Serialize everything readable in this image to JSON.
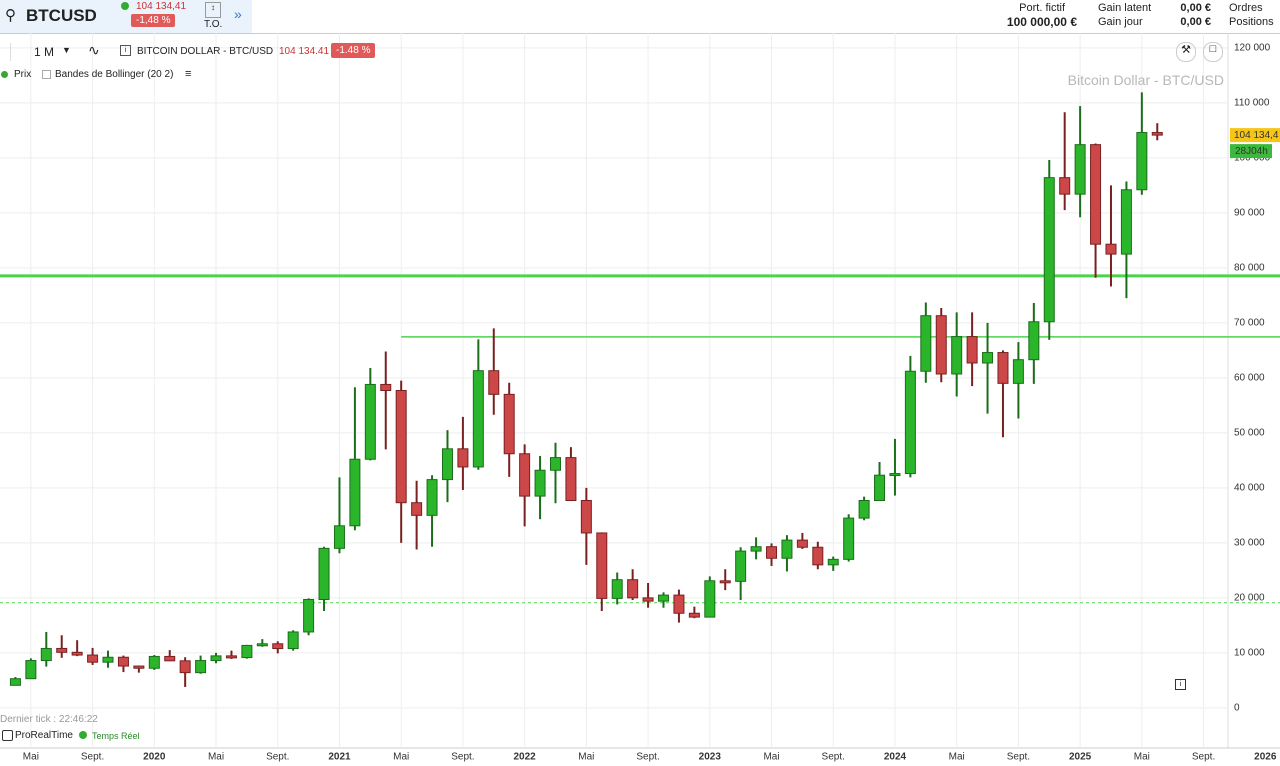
{
  "header": {
    "symbol": "BTCUSD",
    "price": "104 134,41",
    "change": "-1,48 %",
    "to": "T.O.",
    "port_label": "Port. fictif",
    "port_value": "100 000,00 €",
    "gain_latent_label": "Gain latent",
    "gain_latent": "0,00 €",
    "gain_jour_label": "Gain jour",
    "gain_jour": "0,00 €",
    "ordres": "Ordres",
    "positions": "Positions"
  },
  "toolbar": {
    "period": "1 M",
    "instrument": "BITCOIN DOLLAR - BTC/USD",
    "price": "104 134.41",
    "change": "-1.48 %",
    "legend_price": "Prix",
    "legend_bollinger": "Bandes de Bollinger (20 2)"
  },
  "footer": {
    "last_tick": "Dernier tick : 22:46:22",
    "source": "ProRealTime",
    "realtime": "Temps Réel"
  },
  "chart_data": {
    "type": "candlestick",
    "title": "Bitcoin Dollar - BTC/USD",
    "up_color": "#2bb52b",
    "down_color": "#cc4747",
    "x": [
      "2019-04",
      "2019-05",
      "2019-06",
      "2019-07",
      "2019-08",
      "2019-09",
      "2019-10",
      "2019-11",
      "2019-12",
      "2020-01",
      "2020-02",
      "2020-03",
      "2020-04",
      "2020-05",
      "2020-06",
      "2020-07",
      "2020-08",
      "2020-09",
      "2020-10",
      "2020-11",
      "2020-12",
      "2021-01",
      "2021-02",
      "2021-03",
      "2021-04",
      "2021-05",
      "2021-06",
      "2021-07",
      "2021-08",
      "2021-09",
      "2021-10",
      "2021-11",
      "2021-12",
      "2022-01",
      "2022-02",
      "2022-03",
      "2022-04",
      "2022-05",
      "2022-06",
      "2022-07",
      "2022-08",
      "2022-09",
      "2022-10",
      "2022-11",
      "2022-12",
      "2023-01",
      "2023-02",
      "2023-03",
      "2023-04",
      "2023-05",
      "2023-06",
      "2023-07",
      "2023-08",
      "2023-09",
      "2023-10",
      "2023-11",
      "2023-12",
      "2024-01",
      "2024-02",
      "2024-03",
      "2024-04",
      "2024-05",
      "2024-06",
      "2024-07",
      "2024-08",
      "2024-09",
      "2024-10",
      "2024-11",
      "2024-12",
      "2025-01",
      "2025-02",
      "2025-03",
      "2025-04",
      "2025-05",
      "2025-06"
    ],
    "open": [
      4100,
      5300,
      8600,
      10800,
      10100,
      9600,
      8300,
      9200,
      7600,
      7200,
      9350,
      8550,
      6400,
      8600,
      9450,
      9140,
      11350,
      11650,
      10780,
      13800,
      19700,
      29000,
      33100,
      45200,
      58800,
      57700,
      37300,
      35000,
      41500,
      47100,
      43800,
      61300,
      57000,
      46200,
      38500,
      43200,
      45500,
      37700,
      31800,
      19900,
      23300,
      20000,
      19400,
      20500,
      17200,
      16500,
      23100,
      23000,
      28500,
      29300,
      27200,
      30500,
      29200,
      26000,
      27000,
      34500,
      37700,
      42300,
      42600,
      61200,
      71300,
      60700,
      67500,
      62700,
      64600,
      59000,
      63300,
      70200,
      96400,
      93400,
      102400,
      84300,
      82500,
      94200,
      104600
    ],
    "high": [
      5600,
      9000,
      13800,
      13200,
      12300,
      10900,
      10400,
      9500,
      7700,
      9600,
      10500,
      9200,
      9500,
      10000,
      10400,
      11450,
      12500,
      12100,
      14100,
      19900,
      29300,
      41900,
      58300,
      61800,
      64800,
      59500,
      41300,
      42300,
      50500,
      52900,
      67000,
      69000,
      59100,
      47900,
      45800,
      48200,
      47400,
      40000,
      31900,
      24600,
      25200,
      22700,
      21000,
      21500,
      18400,
      23900,
      25200,
      29200,
      31000,
      29900,
      31400,
      31800,
      30200,
      27500,
      35200,
      38400,
      44700,
      48900,
      64000,
      73700,
      72700,
      71900,
      71900,
      70000,
      65000,
      66500,
      73600,
      99600,
      108300,
      109400,
      102600,
      95000,
      95700,
      111900,
      106300
    ],
    "low": [
      4100,
      5300,
      7500,
      9100,
      9400,
      7800,
      7300,
      6500,
      6400,
      6900,
      8500,
      3800,
      6200,
      8100,
      8900,
      8950,
      11100,
      9900,
      10400,
      13200,
      17600,
      28100,
      32300,
      45000,
      47000,
      30000,
      28800,
      29300,
      37400,
      39600,
      43300,
      53300,
      42000,
      33000,
      34300,
      37200,
      37600,
      26000,
      17600,
      18800,
      19600,
      18200,
      18200,
      15500,
      16300,
      16500,
      21400,
      19600,
      27000,
      25800,
      24800,
      28900,
      25200,
      24900,
      26600,
      34100,
      37600,
      38600,
      41900,
      59100,
      59200,
      56600,
      58500,
      53500,
      49200,
      52600,
      58900,
      66900,
      90500,
      89200,
      78200,
      76600,
      74500,
      93300,
      103200
    ],
    "close": [
      5300,
      8600,
      10800,
      10100,
      9600,
      8300,
      9200,
      7600,
      7200,
      9350,
      8550,
      6400,
      8600,
      9450,
      9140,
      11350,
      11650,
      10780,
      13800,
      19700,
      29000,
      33100,
      45200,
      58800,
      57700,
      37300,
      35000,
      41500,
      47100,
      43800,
      61300,
      57000,
      46200,
      38500,
      43200,
      45500,
      37700,
      31800,
      19900,
      23300,
      20000,
      19400,
      20500,
      17200,
      16500,
      23100,
      23000,
      28500,
      29300,
      27200,
      30500,
      29200,
      26000,
      27000,
      34500,
      37700,
      42300,
      42600,
      61200,
      71300,
      60700,
      67500,
      62700,
      64600,
      59000,
      63300,
      70200,
      96400,
      93400,
      102400,
      84300,
      82500,
      94200,
      104600,
      104134.41
    ],
    "last_price_label": "104 134,4",
    "countdown": "28J04h",
    "hlines": [
      {
        "value": 78550,
        "from": "2019-03",
        "color": "#4cd34c"
      },
      {
        "value": 67450,
        "from": "2021-05",
        "color": "#4cd34c"
      },
      {
        "value": 19100,
        "from": "2019-03",
        "color": "#4cd34c",
        "dashed": true
      }
    ],
    "xlim": [
      "2019-03",
      "2025-10"
    ],
    "xticks": [
      {
        "value": "2019-05",
        "label": "Mai"
      },
      {
        "value": "2019-09",
        "label": "Sept."
      },
      {
        "value": "2020-01",
        "label": "2020"
      },
      {
        "value": "2020-05",
        "label": "Mai"
      },
      {
        "value": "2020-09",
        "label": "Sept."
      },
      {
        "value": "2021-01",
        "label": "2021"
      },
      {
        "value": "2021-05",
        "label": "Mai"
      },
      {
        "value": "2021-09",
        "label": "Sept."
      },
      {
        "value": "2022-01",
        "label": "2022"
      },
      {
        "value": "2022-05",
        "label": "Mai"
      },
      {
        "value": "2022-09",
        "label": "Sept."
      },
      {
        "value": "2023-01",
        "label": "2023"
      },
      {
        "value": "2023-05",
        "label": "Mai"
      },
      {
        "value": "2023-09",
        "label": "Sept."
      },
      {
        "value": "2024-01",
        "label": "2024"
      },
      {
        "value": "2024-05",
        "label": "Mai"
      },
      {
        "value": "2024-09",
        "label": "Sept."
      },
      {
        "value": "2025-01",
        "label": "2025"
      },
      {
        "value": "2025-05",
        "label": "Mai"
      },
      {
        "value": "2025-09",
        "label": "Sept."
      },
      {
        "value": "2026-01",
        "label": "2026"
      }
    ],
    "ylim": [
      -7300,
      122700
    ],
    "yticks": [
      0,
      {
        "value": 10000,
        "label": "10 000"
      },
      {
        "value": 20000,
        "label": "20 000"
      },
      {
        "value": 30000,
        "label": "30 000"
      },
      {
        "value": 40000,
        "label": "40 000"
      },
      {
        "value": 50000,
        "label": "50 000"
      },
      {
        "value": 60000,
        "label": "60 000"
      },
      {
        "value": 70000,
        "label": "70 000"
      },
      {
        "value": 80000,
        "label": "80 000"
      },
      {
        "value": 90000,
        "label": "90 000"
      },
      {
        "value": 100000,
        "label": "100 000"
      },
      {
        "value": 110000,
        "label": "110 000"
      },
      {
        "value": 120000,
        "label": "120 000"
      }
    ],
    "grid": true
  }
}
